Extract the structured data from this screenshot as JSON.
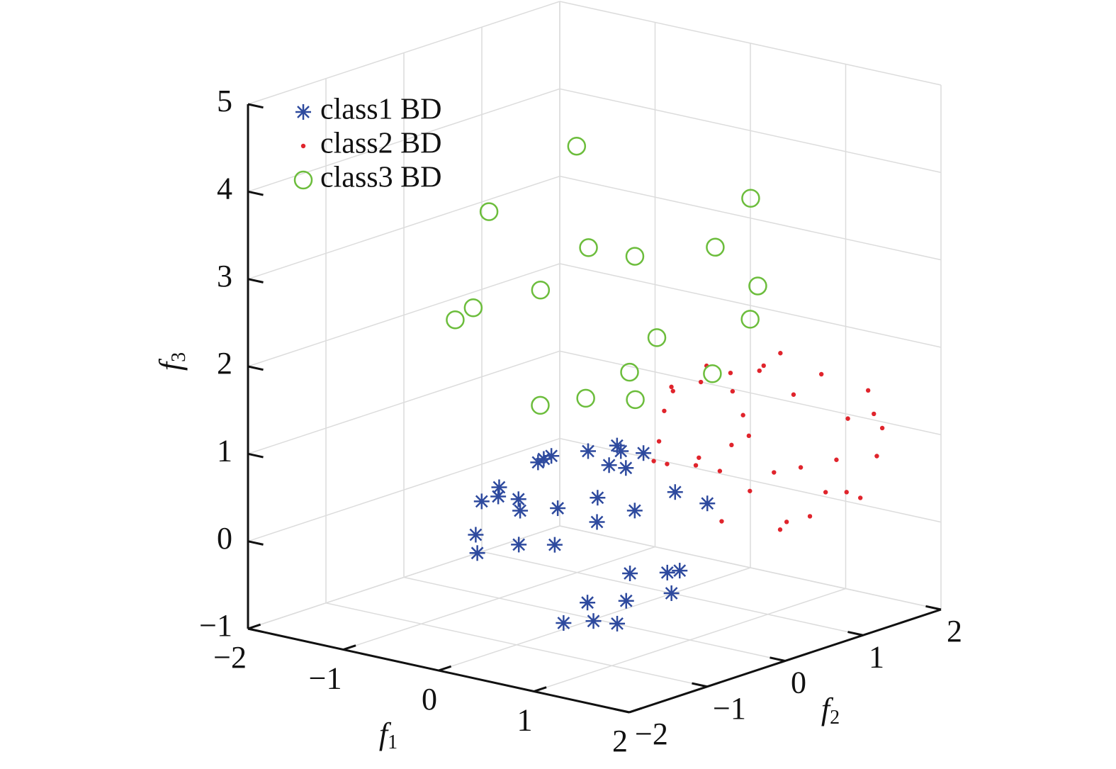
{
  "chart_data": {
    "type": "scatter3d",
    "xlabel": [
      "f",
      "1"
    ],
    "ylabel": [
      "f",
      "2"
    ],
    "zlabel": [
      "f",
      "3"
    ],
    "xlim": [
      -2,
      2
    ],
    "ylim": [
      -2,
      2
    ],
    "zlim": [
      -1,
      5
    ],
    "xticks": [
      {
        "value": -2,
        "label": "−2"
      },
      {
        "value": -1,
        "label": "−1"
      },
      0,
      1,
      2
    ],
    "yticks": [
      {
        "value": -2,
        "label": "−2"
      },
      {
        "value": -1,
        "label": "−1"
      },
      0,
      1,
      2
    ],
    "zticks": [
      {
        "value": -1,
        "label": "−1"
      },
      0,
      1,
      2,
      3,
      4,
      5
    ],
    "grid": true,
    "legend": "upper left",
    "series": [
      {
        "name": "class1 BD",
        "color": "#2e4a9e",
        "marker": "star",
        "x": [
          -0.12,
          0.03,
          0.23,
          -0.36,
          -0.15,
          -0.65,
          -0.43,
          -0.39,
          -0.01,
          -0.33,
          -0.69,
          -0.23,
          0.0,
          -1.29,
          -1.28,
          -1.45,
          -1.1,
          -0.87,
          -0.68,
          -0.63,
          -0.17,
          -0.15,
          -0.25,
          0.17,
          -1.68,
          -1.71,
          -1.72,
          -1.58,
          -1.17,
          -1.04,
          -1.18,
          -1.02,
          -0.86
        ],
        "y": [
          -0.25,
          -0.05,
          0.01,
          0.35,
          0.59,
          1.25,
          1.46,
          1.57,
          1.0,
          -1.1,
          -0.68,
          -0.69,
          -0.51,
          0.13,
          0.33,
          0.55,
          0.37,
          0.11,
          0.36,
          0.81,
          0.24,
          0.7,
          1.34,
          1.24,
          1.33,
          1.44,
          1.55,
          1.85,
          1.72,
          1.61,
          1.63,
          1.65,
          1.68
        ],
        "z": [
          -1,
          -1,
          -1,
          -1,
          -1,
          -1,
          -1,
          -1,
          -1,
          0,
          0,
          0,
          0,
          0,
          0,
          0,
          0,
          0,
          0,
          0,
          0,
          0,
          0,
          0,
          0,
          0,
          0,
          0,
          0.2,
          0.2,
          0,
          0,
          0.2
        ]
      },
      {
        "name": "class2 BD",
        "color": "#e0242c",
        "marker": "dot",
        "x": [
          1.1,
          0.97,
          0.9,
          0.83,
          0.71,
          0.65,
          0.39,
          0.48,
          0.86,
          1.14,
          1.26,
          1.53,
          1.68,
          1.67,
          1.44,
          0.88,
          0.81,
          0.71,
          0.47,
          0.35,
          0.36,
          0.5,
          0.58,
          0.54,
          0.8,
          1.0,
          1.24,
          1.32,
          1.67,
          0.87,
          1.37,
          1.5,
          1.53,
          1.23,
          1.19,
          1.13,
          0.77
        ],
        "y": [
          1.04,
          0.93,
          1.07,
          0.73,
          0.57,
          0.57,
          0.51,
          0.42,
          0.72,
          1.16,
          1.37,
          1.64,
          1.53,
          1.65,
          1.49,
          0.83,
          0.99,
          0.89,
          0.32,
          0.4,
          0.32,
          0.32,
          0.63,
          0.64,
          0.63,
          1.08,
          1.13,
          1.49,
          1.58,
          0.93,
          1.29,
          1.4,
          1.54,
          1.26,
          1.01,
          1.0,
          0.69
        ],
        "z": [
          2.0,
          1.8,
          1.8,
          1.8,
          1.9,
          1.7,
          1.6,
          1.6,
          1.6,
          1.5,
          1.7,
          1.5,
          1.3,
          1.1,
          1.2,
          1.3,
          1.0,
          0.9,
          1.4,
          1.0,
          0.8,
          0.8,
          0.8,
          0.7,
          0.7,
          0.6,
          0.7,
          0.7,
          0.8,
          0.4,
          0.4,
          0.4,
          0.3,
          0.1,
          0.1,
          0.0,
          0.1
        ]
      },
      {
        "name": "class3 BD",
        "color": "#6cbd3c",
        "marker": "circle",
        "x": [
          -0.13,
          -0.6,
          0.96,
          -0.12,
          0.17,
          0.67,
          1.01,
          -0.28,
          -0.7,
          -0.75,
          0.93,
          0.36,
          0.18,
          0.73,
          -0.1,
          0.24,
          -0.25
        ],
        "y": [
          -0.07,
          -0.62,
          0.83,
          0.07,
          0.31,
          0.73,
          0.86,
          -0.35,
          -0.7,
          -0.87,
          0.86,
          0.36,
          0.23,
          0.62,
          0.01,
          0.23,
          -0.39
        ],
        "z": [
          4.4,
          3.7,
          3.8,
          3.2,
          3.1,
          3.2,
          2.8,
          2.8,
          2.6,
          2.5,
          2.4,
          2.2,
          1.8,
          1.8,
          1.5,
          1.5,
          1.5
        ]
      }
    ]
  }
}
